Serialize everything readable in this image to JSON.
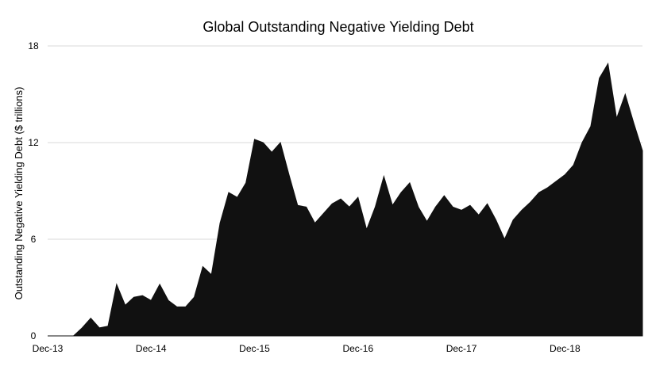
{
  "chart_data": {
    "type": "area",
    "title": "Global Outstanding Negative Yielding Debt",
    "xlabel": "",
    "ylabel": "Outstanding Negative Yielding Debt ($ trillions)",
    "ylim": [
      0,
      18
    ],
    "yticks": [
      0,
      6,
      12,
      18
    ],
    "xlim": [
      "2013-12",
      "2019-09"
    ],
    "xticks": [
      "Dec-13",
      "Dec-14",
      "Dec-15",
      "Dec-16",
      "Dec-17",
      "Dec-18"
    ],
    "grid": true,
    "legend": "none",
    "fill_color": "#111111",
    "grid_color": "#d9d9d9",
    "x": [
      "2013-12",
      "2014-03",
      "2014-04",
      "2014-05",
      "2014-06",
      "2014-07",
      "2014-08",
      "2014-09",
      "2014-10",
      "2014-11",
      "2014-12",
      "2015-01",
      "2015-02",
      "2015-03",
      "2015-04",
      "2015-05",
      "2015-06",
      "2015-07",
      "2015-08",
      "2015-09",
      "2015-10",
      "2015-11",
      "2015-12",
      "2016-01",
      "2016-02",
      "2016-03",
      "2016-04",
      "2016-05",
      "2016-06",
      "2016-07",
      "2016-08",
      "2016-09",
      "2016-10",
      "2016-11",
      "2016-12",
      "2017-01",
      "2017-02",
      "2017-03",
      "2017-04",
      "2017-05",
      "2017-06",
      "2017-07",
      "2017-08",
      "2017-09",
      "2017-10",
      "2017-11",
      "2017-12",
      "2018-01",
      "2018-02",
      "2018-03",
      "2018-04",
      "2018-05",
      "2018-06",
      "2018-07",
      "2018-08",
      "2018-09",
      "2018-10",
      "2018-11",
      "2018-12",
      "2019-01",
      "2019-02",
      "2019-03",
      "2019-04",
      "2019-05",
      "2019-06",
      "2019-07",
      "2019-08",
      "2019-09"
    ],
    "values": [
      0.0,
      0.0,
      0.5,
      1.1,
      0.5,
      0.6,
      3.2,
      1.9,
      2.4,
      2.5,
      2.2,
      3.2,
      2.2,
      1.8,
      1.8,
      2.4,
      4.3,
      3.8,
      7.0,
      8.9,
      8.6,
      9.5,
      12.2,
      12.0,
      11.4,
      12.0,
      10.0,
      8.1,
      8.0,
      7.0,
      7.6,
      8.2,
      8.5,
      8.0,
      8.6,
      6.6,
      8.0,
      9.9,
      8.1,
      8.9,
      9.5,
      8.0,
      7.1,
      8.0,
      8.7,
      8.0,
      7.8,
      8.1,
      7.5,
      8.2,
      7.2,
      6.0,
      7.2,
      7.8,
      8.3,
      8.9,
      9.2,
      9.6,
      10.0,
      10.6,
      12.0,
      13.0,
      16.0,
      16.9,
      13.5,
      15.0,
      13.2,
      11.5
    ]
  }
}
